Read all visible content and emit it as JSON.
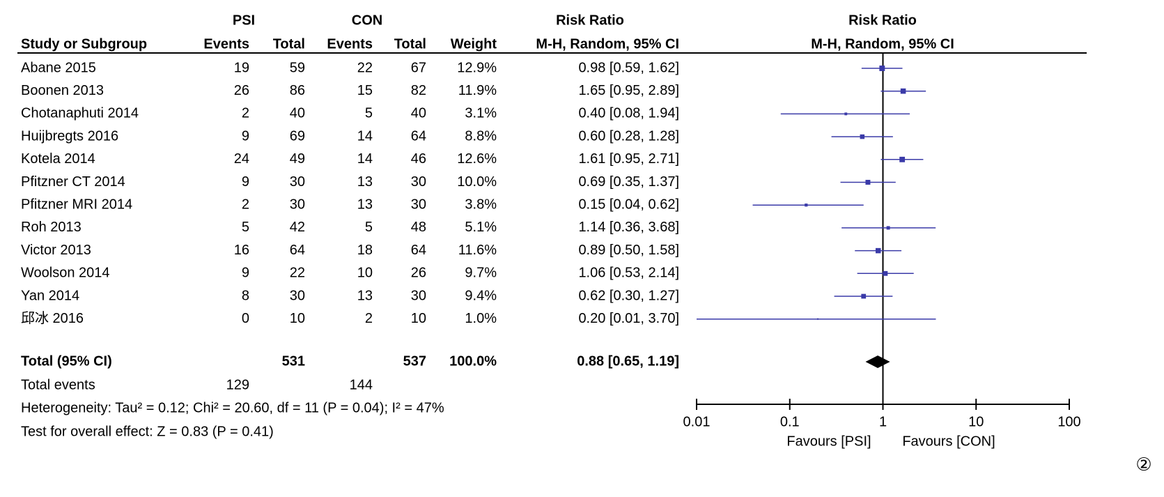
{
  "chart_data": {
    "type": "forest",
    "headers": {
      "psi": "PSI",
      "con": "CON",
      "rr_left": "Risk Ratio",
      "rr_right": "Risk Ratio",
      "study": "Study or Subgroup",
      "psi_events": "Events",
      "psi_total": "Total",
      "con_events": "Events",
      "con_total": "Total",
      "weight": "Weight",
      "method_left": "M-H, Random, 95% CI",
      "method_right": "M-H, Random, 95% CI"
    },
    "studies": [
      {
        "name": "Abane 2015",
        "psi_events": 19,
        "psi_total": 59,
        "con_events": 22,
        "con_total": 67,
        "weight": 12.9,
        "weight_label": "12.9%",
        "rr": 0.98,
        "ci": [
          0.59,
          1.62
        ],
        "ci_label": "0.98 [0.59, 1.62]"
      },
      {
        "name": "Boonen 2013",
        "psi_events": 26,
        "psi_total": 86,
        "con_events": 15,
        "con_total": 82,
        "weight": 11.9,
        "weight_label": "11.9%",
        "rr": 1.65,
        "ci": [
          0.95,
          2.89
        ],
        "ci_label": "1.65 [0.95, 2.89]"
      },
      {
        "name": "Chotanaphuti 2014",
        "psi_events": 2,
        "psi_total": 40,
        "con_events": 5,
        "con_total": 40,
        "weight": 3.1,
        "weight_label": "3.1%",
        "rr": 0.4,
        "ci": [
          0.08,
          1.94
        ],
        "ci_label": "0.40 [0.08, 1.94]"
      },
      {
        "name": "Huijbregts 2016",
        "psi_events": 9,
        "psi_total": 69,
        "con_events": 14,
        "con_total": 64,
        "weight": 8.8,
        "weight_label": "8.8%",
        "rr": 0.6,
        "ci": [
          0.28,
          1.28
        ],
        "ci_label": "0.60 [0.28, 1.28]"
      },
      {
        "name": "Kotela 2014",
        "psi_events": 24,
        "psi_total": 49,
        "con_events": 14,
        "con_total": 46,
        "weight": 12.6,
        "weight_label": "12.6%",
        "rr": 1.61,
        "ci": [
          0.95,
          2.71
        ],
        "ci_label": "1.61 [0.95, 2.71]"
      },
      {
        "name": "Pfitzner CT 2014",
        "psi_events": 9,
        "psi_total": 30,
        "con_events": 13,
        "con_total": 30,
        "weight": 10.0,
        "weight_label": "10.0%",
        "rr": 0.69,
        "ci": [
          0.35,
          1.37
        ],
        "ci_label": "0.69 [0.35, 1.37]"
      },
      {
        "name": "Pfitzner MRI 2014",
        "psi_events": 2,
        "psi_total": 30,
        "con_events": 13,
        "con_total": 30,
        "weight": 3.8,
        "weight_label": "3.8%",
        "rr": 0.15,
        "ci": [
          0.04,
          0.62
        ],
        "ci_label": "0.15 [0.04, 0.62]"
      },
      {
        "name": "Roh 2013",
        "psi_events": 5,
        "psi_total": 42,
        "con_events": 5,
        "con_total": 48,
        "weight": 5.1,
        "weight_label": "5.1%",
        "rr": 1.14,
        "ci": [
          0.36,
          3.68
        ],
        "ci_label": "1.14 [0.36, 3.68]"
      },
      {
        "name": "Victor 2013",
        "psi_events": 16,
        "psi_total": 64,
        "con_events": 18,
        "con_total": 64,
        "weight": 11.6,
        "weight_label": "11.6%",
        "rr": 0.89,
        "ci": [
          0.5,
          1.58
        ],
        "ci_label": "0.89 [0.50, 1.58]"
      },
      {
        "name": "Woolson 2014",
        "psi_events": 9,
        "psi_total": 22,
        "con_events": 10,
        "con_total": 26,
        "weight": 9.7,
        "weight_label": "9.7%",
        "rr": 1.06,
        "ci": [
          0.53,
          2.14
        ],
        "ci_label": "1.06 [0.53, 2.14]"
      },
      {
        "name": "Yan 2014",
        "psi_events": 8,
        "psi_total": 30,
        "con_events": 13,
        "con_total": 30,
        "weight": 9.4,
        "weight_label": "9.4%",
        "rr": 0.62,
        "ci": [
          0.3,
          1.27
        ],
        "ci_label": "0.62 [0.30, 1.27]"
      },
      {
        "name": "邱冰 2016",
        "psi_events": 0,
        "psi_total": 10,
        "con_events": 2,
        "con_total": 10,
        "weight": 1.0,
        "weight_label": "1.0%",
        "rr": 0.2,
        "ci": [
          0.01,
          3.7
        ],
        "ci_label": "0.20 [0.01, 3.70]"
      }
    ],
    "total": {
      "name": "Total (95% CI)",
      "psi_total": 531,
      "con_total": 537,
      "weight": 100.0,
      "weight_label": "100.0%",
      "rr": 0.88,
      "ci": [
        0.65,
        1.19
      ],
      "ci_label": "0.88 [0.65, 1.19]"
    },
    "total_events": {
      "name": "Total events",
      "psi": 129,
      "con": 144
    },
    "heterogeneity": "Heterogeneity: Tau² = 0.12; Chi² = 20.60, df = 11 (P = 0.04); I² = 47%",
    "overall_effect": "Test for overall effect: Z = 0.83 (P = 0.41)",
    "xlim": [
      0.01,
      100
    ],
    "xticks": [
      0.01,
      0.1,
      1,
      10,
      100
    ],
    "log_x": true,
    "null_line": 1,
    "xlabel_left": "Favours [PSI]",
    "xlabel_right": "Favours [CON]",
    "marker_color": "#3a3aa8",
    "figure_label": "②"
  }
}
